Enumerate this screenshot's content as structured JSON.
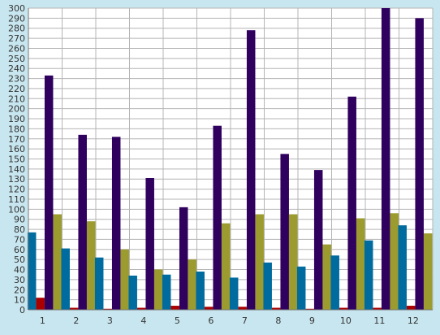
{
  "chart_data": {
    "type": "bar",
    "title": "",
    "xlabel": "",
    "ylabel": "",
    "categories": [
      "1",
      "2",
      "3",
      "4",
      "5",
      "6",
      "7",
      "8",
      "9",
      "10",
      "11",
      "12"
    ],
    "ylim": [
      0,
      300
    ],
    "ytick_step": 10,
    "grid": true,
    "legend": "none",
    "series": [
      {
        "color": "#aa0000",
        "values": [
          12,
          2,
          1,
          2,
          4,
          3,
          3,
          2,
          1,
          2,
          2,
          4
        ]
      },
      {
        "color": "#30005f",
        "values": [
          233,
          174,
          172,
          131,
          102,
          183,
          278,
          155,
          139,
          212,
          300,
          290
        ]
      },
      {
        "color": "#9b9b2f",
        "values": [
          95,
          88,
          60,
          40,
          50,
          86,
          95,
          95,
          65,
          91,
          96,
          76
        ]
      },
      {
        "color": "#006b9f",
        "values": [
          77,
          61,
          52,
          34,
          35,
          38,
          32,
          47,
          43,
          54,
          69,
          84
        ]
      }
    ],
    "series_order_in_group": [
      3,
      0,
      1,
      2
    ],
    "colors": {
      "background": "#c8e6ef",
      "plot_background": "#ffffff",
      "grid": "#b4b4b4",
      "axis": "#7a7a7a"
    }
  }
}
